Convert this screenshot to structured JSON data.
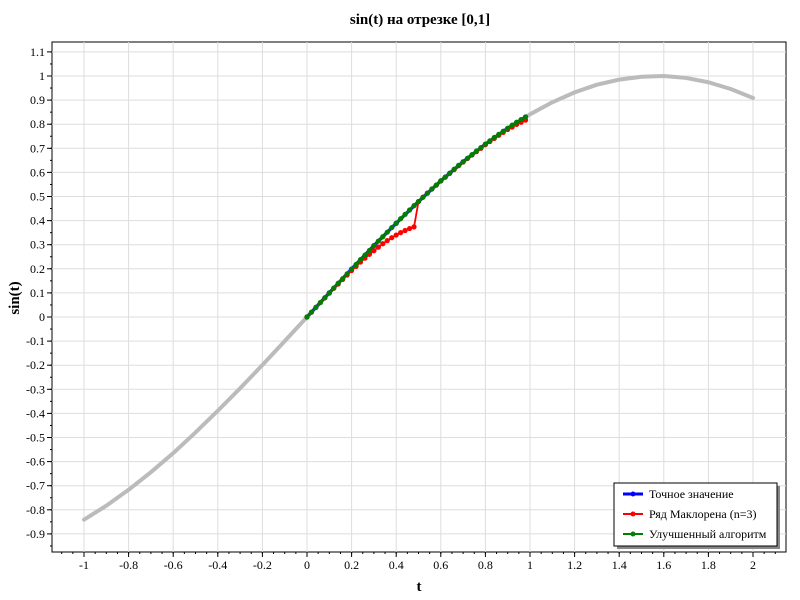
{
  "chart_data": {
    "type": "line",
    "title": "sin(t) на отрезке [0,1]",
    "xlabel": "t",
    "ylabel": "sin(t)",
    "xlim": [
      -1.1,
      2.15
    ],
    "ylim": [
      -0.98,
      1.13
    ],
    "grid": true,
    "legend_position": "bottom-right",
    "x_ticks": [
      -1,
      -0.8,
      -0.6,
      -0.4,
      -0.2,
      0,
      0.2,
      0.4,
      0.6,
      0.8,
      1,
      1.2,
      1.4,
      1.6,
      1.8,
      2
    ],
    "x_tick_labels": [
      "-1",
      "-0.8",
      "-0.6",
      "-0.4",
      "-0.2",
      "0",
      "0.2",
      "0.4",
      "0.6",
      "0.8",
      "1",
      "1.2",
      "1.4",
      "1.6",
      "1.8",
      "2"
    ],
    "y_ticks": [
      1.1,
      1,
      0.9,
      0.8,
      0.7,
      0.6,
      0.5,
      0.4,
      0.3,
      0.2,
      0.1,
      0,
      -0.1,
      -0.2,
      -0.3,
      -0.4,
      -0.5,
      -0.6,
      -0.7,
      -0.8,
      -0.9
    ],
    "y_tick_labels": [
      "1.1",
      "1",
      "0.9",
      "0.8",
      "0.7",
      "0.6",
      "0.5",
      "0.4",
      "0.3",
      "0.2",
      "0.1",
      "0",
      "-0.1",
      "-0.2",
      "-0.3",
      "-0.4",
      "-0.5",
      "-0.6",
      "-0.7",
      "-0.8",
      "-0.9"
    ],
    "background_curve": {
      "color": "#bbbbbb",
      "x": [
        -1,
        -0.9,
        -0.8,
        -0.7,
        -0.6,
        -0.5,
        -0.4,
        -0.3,
        -0.2,
        -0.1,
        0,
        0.1,
        0.2,
        0.3,
        0.4,
        0.5,
        0.6,
        0.7,
        0.8,
        0.9,
        1,
        1.1,
        1.2,
        1.3,
        1.4,
        1.5,
        1.6,
        1.7,
        1.8,
        1.9,
        2
      ],
      "y": [
        -0.841,
        -0.783,
        -0.717,
        -0.644,
        -0.565,
        -0.479,
        -0.389,
        -0.296,
        -0.199,
        -0.1,
        0,
        0.1,
        0.199,
        0.296,
        0.389,
        0.479,
        0.565,
        0.644,
        0.717,
        0.783,
        0.841,
        0.891,
        0.932,
        0.964,
        0.985,
        0.997,
        1.0,
        0.992,
        0.974,
        0.946,
        0.909
      ]
    },
    "series": [
      {
        "name": "Точное значение",
        "color": "#0000ff",
        "x": [
          0,
          0.1,
          0.2,
          0.3,
          0.4,
          0.5,
          0.6,
          0.7,
          0.8,
          0.9,
          0.98
        ],
        "y": [
          0,
          0.1,
          0.199,
          0.296,
          0.389,
          0.479,
          0.565,
          0.644,
          0.717,
          0.783,
          0.83
        ]
      },
      {
        "name": "Ряд Маклорена (n=3)",
        "color": "#ff0000",
        "x": [
          0,
          0.02,
          0.04,
          0.06,
          0.08,
          0.1,
          0.12,
          0.14,
          0.16,
          0.18,
          0.2,
          0.22,
          0.24,
          0.26,
          0.28,
          0.3,
          0.32,
          0.34,
          0.36,
          0.38,
          0.4,
          0.42,
          0.44,
          0.46,
          0.48,
          0.5,
          0.52,
          0.54,
          0.56,
          0.58,
          0.6,
          0.62,
          0.64,
          0.66,
          0.68,
          0.7,
          0.72,
          0.74,
          0.76,
          0.78,
          0.8,
          0.82,
          0.84,
          0.86,
          0.88,
          0.9,
          0.92,
          0.94,
          0.96,
          0.98
        ],
        "y": [
          0,
          0.02,
          0.04,
          0.06,
          0.079,
          0.099,
          0.119,
          0.137,
          0.156,
          0.174,
          0.193,
          0.21,
          0.228,
          0.244,
          0.26,
          0.275,
          0.29,
          0.304,
          0.317,
          0.329,
          0.34,
          0.35,
          0.359,
          0.367,
          0.374,
          0.479,
          0.497,
          0.514,
          0.531,
          0.547,
          0.564,
          0.58,
          0.596,
          0.612,
          0.628,
          0.643,
          0.658,
          0.672,
          0.686,
          0.7,
          0.715,
          0.728,
          0.741,
          0.754,
          0.766,
          0.778,
          0.788,
          0.799,
          0.808,
          0.817
        ]
      },
      {
        "name": "Улучшенный алгоритм",
        "color": "#008000",
        "x": [
          0,
          0.02,
          0.04,
          0.06,
          0.08,
          0.1,
          0.12,
          0.14,
          0.16,
          0.18,
          0.2,
          0.22,
          0.24,
          0.26,
          0.28,
          0.3,
          0.32,
          0.34,
          0.36,
          0.38,
          0.4,
          0.42,
          0.44,
          0.46,
          0.48,
          0.5,
          0.52,
          0.54,
          0.56,
          0.58,
          0.6,
          0.62,
          0.64,
          0.66,
          0.68,
          0.7,
          0.72,
          0.74,
          0.76,
          0.78,
          0.8,
          0.82,
          0.84,
          0.86,
          0.88,
          0.9,
          0.92,
          0.94,
          0.96,
          0.98
        ],
        "y": [
          0,
          0.02,
          0.04,
          0.06,
          0.08,
          0.1,
          0.12,
          0.14,
          0.159,
          0.179,
          0.199,
          0.218,
          0.238,
          0.257,
          0.276,
          0.296,
          0.315,
          0.333,
          0.352,
          0.371,
          0.389,
          0.408,
          0.426,
          0.444,
          0.462,
          0.479,
          0.497,
          0.514,
          0.531,
          0.548,
          0.565,
          0.581,
          0.597,
          0.613,
          0.629,
          0.644,
          0.659,
          0.674,
          0.689,
          0.703,
          0.717,
          0.731,
          0.745,
          0.758,
          0.771,
          0.783,
          0.796,
          0.808,
          0.819,
          0.83
        ]
      }
    ]
  }
}
